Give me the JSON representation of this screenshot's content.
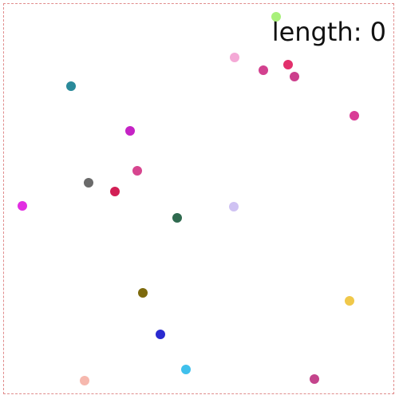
{
  "score": {
    "label": "length",
    "value": 0,
    "text": "length: 0"
  },
  "colors": {
    "border": "#e08c8c",
    "background": "#ffffff"
  },
  "dots": [
    {
      "color": "#a8f07a"
    },
    {
      "color": "#f4a9d6"
    },
    {
      "color": "#d2418f"
    },
    {
      "color": "#e2306c"
    },
    {
      "color": "#cc3f8d"
    },
    {
      "color": "#2a8a9a"
    },
    {
      "color": "#d93c96"
    },
    {
      "color": "#c523c5"
    },
    {
      "color": "#d7458f"
    },
    {
      "color": "#6a6a6a"
    },
    {
      "color": "#d21f55"
    },
    {
      "color": "#e22ee2"
    },
    {
      "color": "#2f6a4f"
    },
    {
      "color": "#cfc2f3"
    },
    {
      "color": "#7d6a0d"
    },
    {
      "color": "#f0c84a"
    },
    {
      "color": "#2a2ad0"
    },
    {
      "color": "#3fc0ec"
    },
    {
      "color": "#f6b8ae"
    },
    {
      "color": "#c4448c"
    }
  ]
}
